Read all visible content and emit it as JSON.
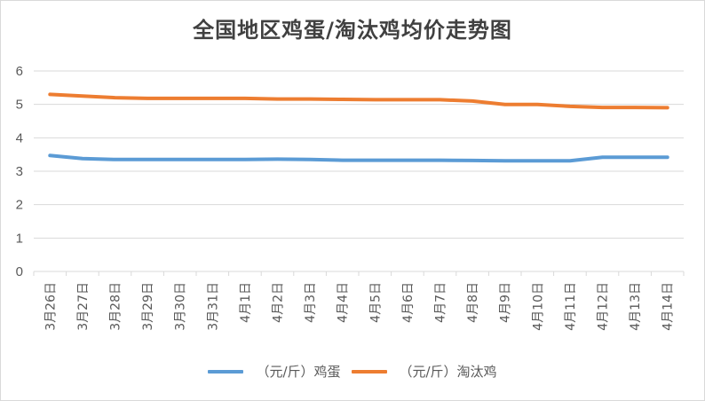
{
  "chart_data": {
    "type": "line",
    "title": "全国地区鸡蛋/淘汰鸡均价走势图",
    "xlabel": "",
    "ylabel": "",
    "ylim": [
      0,
      6
    ],
    "yticks": [
      0,
      1,
      2,
      3,
      4,
      5,
      6
    ],
    "grid": true,
    "legend": "bottom",
    "categories": [
      "3月26日",
      "3月27日",
      "3月28日",
      "3月29日",
      "3月30日",
      "3月31日",
      "4月1日",
      "4月2日",
      "4月3日",
      "4月4日",
      "4月5日",
      "4月6日",
      "4月7日",
      "4月8日",
      "4月9日",
      "4月10日",
      "4月11日",
      "4月12日",
      "4月13日",
      "4月14日"
    ],
    "series": [
      {
        "name": "（元/斤）鸡蛋",
        "color": "#5b9bd5",
        "values": [
          3.47,
          3.38,
          3.35,
          3.35,
          3.35,
          3.35,
          3.35,
          3.36,
          3.35,
          3.33,
          3.33,
          3.33,
          3.33,
          3.32,
          3.31,
          3.31,
          3.31,
          3.42,
          3.42,
          3.42
        ]
      },
      {
        "name": "（元/斤）淘汰鸡",
        "color": "#ed7d31",
        "values": [
          5.3,
          5.25,
          5.2,
          5.18,
          5.18,
          5.18,
          5.18,
          5.16,
          5.16,
          5.15,
          5.14,
          5.14,
          5.14,
          5.1,
          5.0,
          5.0,
          4.94,
          4.91,
          4.91,
          4.9
        ]
      }
    ]
  }
}
